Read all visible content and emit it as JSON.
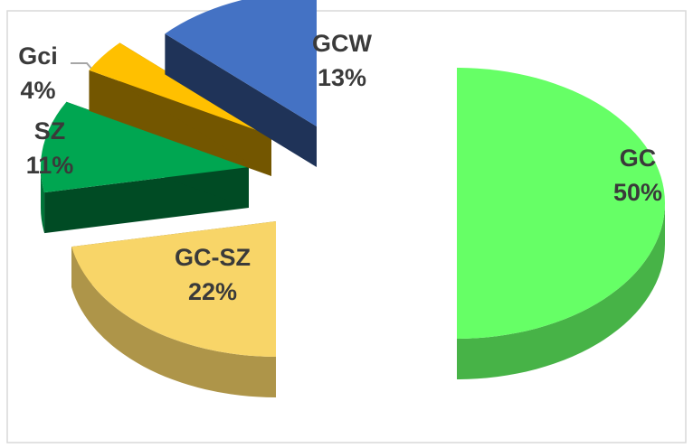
{
  "chart_data": {
    "type": "pie",
    "categories": [
      "GC",
      "GC-SZ",
      "SZ",
      "Gci",
      "GCW"
    ],
    "values": [
      50,
      22,
      11,
      4,
      13
    ],
    "value_labels": [
      "50%",
      "22%",
      "11%",
      "4%",
      "13%"
    ],
    "colors": [
      "#66ff66",
      "#f8d568",
      "#00a651",
      "#ffc000",
      "#4472c4"
    ]
  }
}
